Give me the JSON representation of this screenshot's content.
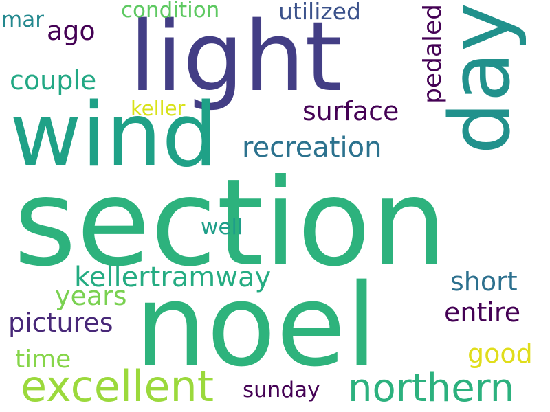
{
  "words": {
    "section": "section",
    "noel": "noel",
    "light": "light",
    "wind": "wind",
    "day": "day",
    "excellent": "excellent",
    "northern": "northern",
    "recreation": "recreation",
    "kellertramway": "kellertramway",
    "pictures": "pictures",
    "entire": "entire",
    "short": "short",
    "surface": "surface",
    "couple": "couple",
    "years": "years",
    "good": "good",
    "ago": "ago",
    "time": "time",
    "utilized": "utilized",
    "condition": "condition",
    "pedaled": "pedaled",
    "well": "well",
    "sunday": "sunday",
    "mar": "mar",
    "keller": "keller"
  },
  "colors": {
    "background": "#ffffff",
    "palette": [
      "#440154",
      "#482878",
      "#3b528b",
      "#2c728e",
      "#21918c",
      "#1fa187",
      "#2db27d",
      "#5ec962",
      "#9bd93c",
      "#e0dd1b"
    ]
  }
}
